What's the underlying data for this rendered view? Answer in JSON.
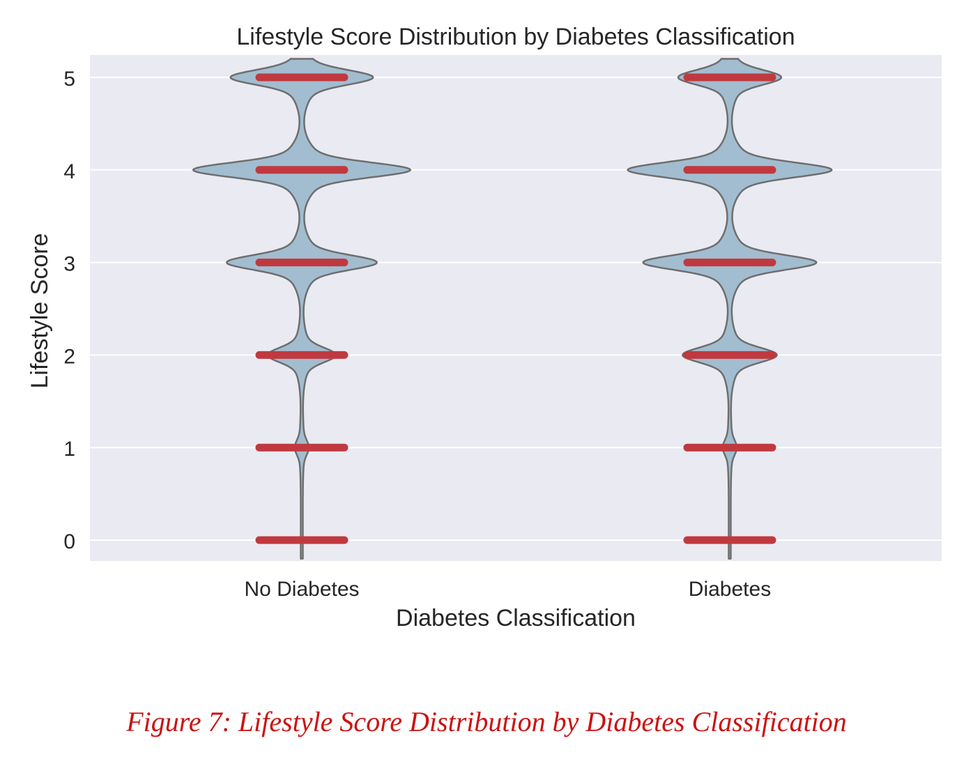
{
  "chart_data": {
    "type": "violin",
    "title": "Lifestyle Score Distribution by Diabetes Classification",
    "xlabel": "Diabetes Classification",
    "ylabel": "Lifestyle Score",
    "categories": [
      "No Diabetes",
      "Diabetes"
    ],
    "y_ticks": [
      "0",
      "1",
      "2",
      "3",
      "4",
      "5"
    ],
    "ylim": [
      -0.2,
      5.2
    ],
    "grid": true,
    "observed_values": [
      0,
      1,
      2,
      3,
      4,
      5
    ],
    "relative_density": [
      {
        "category": "No Diabetes",
        "values": [
          0.0,
          0.11,
          0.6,
          1.35,
          1.96,
          1.28
        ]
      },
      {
        "category": "Diabetes",
        "values": [
          0.0,
          0.11,
          0.84,
          1.56,
          1.84,
          0.92
        ]
      }
    ],
    "colors": {
      "violin_fill": "#a2bdd0",
      "violin_edge": "#6e6e6e",
      "marker": "#c0393f",
      "plot_background": "#eaeaf2",
      "grid": "#ffffff"
    }
  },
  "caption": "Figure 7: Lifestyle Score Distribution by Diabetes Classification"
}
